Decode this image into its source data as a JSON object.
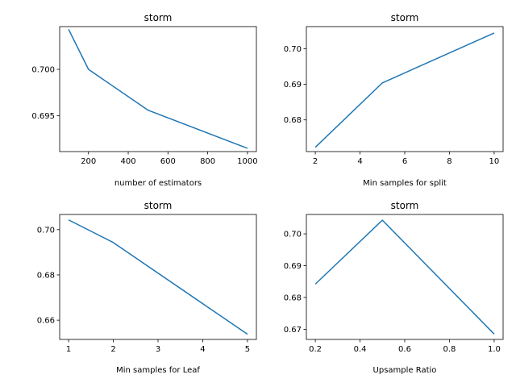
{
  "chart_data": [
    {
      "type": "line",
      "title": "storm",
      "xlabel": "number of estimators",
      "ylabel": "",
      "xlim": [
        55,
        1045
      ],
      "ylim": [
        0.69115,
        0.7046
      ],
      "xticks": [
        200,
        400,
        600,
        800,
        1000
      ],
      "yticks": [
        0.695,
        0.7
      ],
      "series": [
        {
          "color": "#1f77b4",
          "x": [
            100,
            200,
            500,
            1000
          ],
          "y": [
            0.7043,
            0.7,
            0.6956,
            0.6915
          ]
        }
      ]
    },
    {
      "type": "line",
      "title": "storm",
      "xlabel": "Min samples for split",
      "ylabel": "",
      "xlim": [
        1.6,
        10.4
      ],
      "ylim": [
        0.6711,
        0.7062
      ],
      "xticks": [
        2,
        4,
        6,
        8,
        10
      ],
      "yticks": [
        0.68,
        0.69,
        0.7
      ],
      "series": [
        {
          "color": "#1f77b4",
          "x": [
            2,
            5,
            10
          ],
          "y": [
            0.6723,
            0.6904,
            0.7044
          ]
        }
      ]
    },
    {
      "type": "line",
      "title": "storm",
      "xlabel": "Min samples for Leaf",
      "ylabel": "",
      "xlim": [
        0.8,
        5.2
      ],
      "ylim": [
        0.6515,
        0.7067
      ],
      "xticks": [
        1,
        2,
        3,
        4,
        5
      ],
      "yticks": [
        0.66,
        0.68,
        0.7
      ],
      "series": [
        {
          "color": "#1f77b4",
          "x": [
            1,
            2,
            5
          ],
          "y": [
            0.7043,
            0.6943,
            0.6538
          ]
        }
      ]
    },
    {
      "type": "line",
      "title": "storm",
      "xlabel": "Upsample Ratio",
      "ylabel": "",
      "xlim": [
        0.16,
        1.04
      ],
      "ylim": [
        0.6668,
        0.7061
      ],
      "xticks": [
        0.2,
        0.4,
        0.6,
        0.8,
        1.0
      ],
      "yticks": [
        0.67,
        0.68,
        0.69,
        0.7
      ],
      "series": [
        {
          "color": "#1f77b4",
          "x": [
            0.2,
            0.5,
            1.0
          ],
          "y": [
            0.6842,
            0.7043,
            0.6685
          ]
        }
      ]
    }
  ]
}
